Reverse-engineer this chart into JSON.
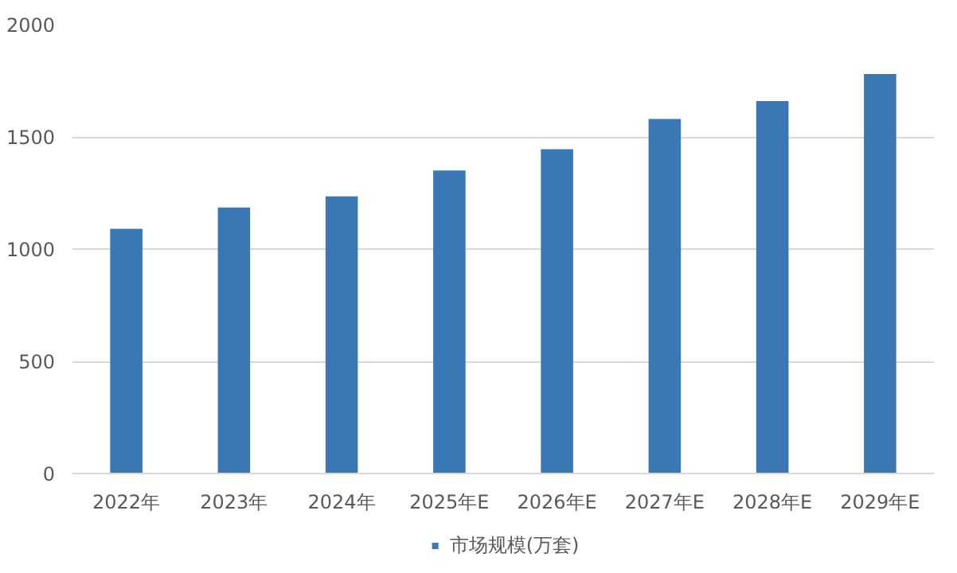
{
  "chart_data": {
    "type": "bar",
    "categories": [
      "2022年",
      "2023年",
      "2024年",
      "2025年E",
      "2026年E",
      "2027年E",
      "2028年E",
      "2029年E"
    ],
    "series": [
      {
        "name": "市场规模(万套)",
        "color": "#3a78b5",
        "values": [
          1090,
          1185,
          1235,
          1350,
          1445,
          1580,
          1660,
          1780
        ]
      }
    ],
    "ylim": [
      0,
      2000
    ],
    "yticks": [
      0,
      500,
      1000,
      1500,
      2000
    ],
    "grid": "y",
    "legend": "bottom"
  }
}
